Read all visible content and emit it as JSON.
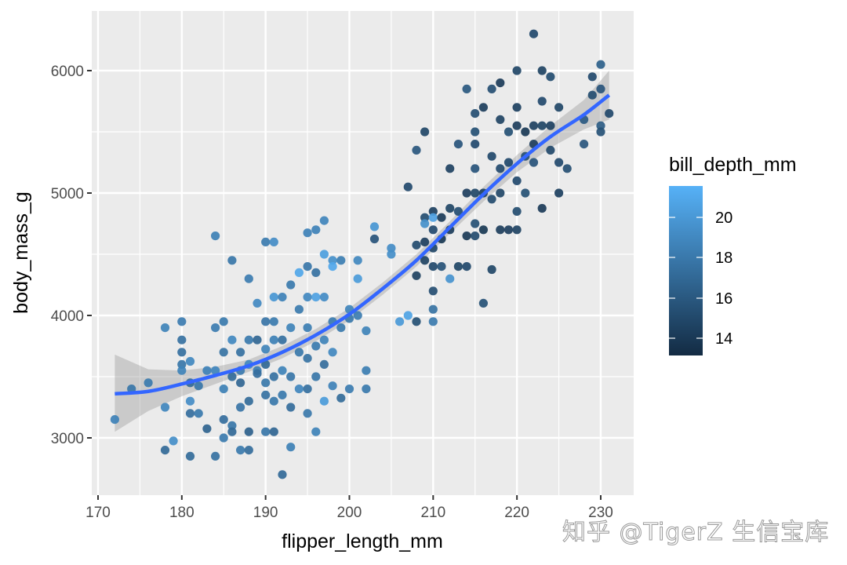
{
  "chart_data": {
    "type": "scatter",
    "title": "",
    "xlabel": "flipper_length_mm",
    "ylabel": "body_mass_g",
    "xlim": [
      170,
      232
    ],
    "ylim": [
      2550,
      6450
    ],
    "x_ticks": [
      170,
      180,
      190,
      200,
      210,
      220,
      230
    ],
    "y_ticks": [
      3000,
      4000,
      5000,
      6000
    ],
    "grid": true,
    "smooth": {
      "method": "loess",
      "color": "#3366FF",
      "curve": [
        [
          172,
          3360
        ],
        [
          176,
          3380
        ],
        [
          180,
          3440
        ],
        [
          184,
          3510
        ],
        [
          188,
          3590
        ],
        [
          192,
          3700
        ],
        [
          196,
          3840
        ],
        [
          200,
          4010
        ],
        [
          204,
          4220
        ],
        [
          208,
          4450
        ],
        [
          212,
          4720
        ],
        [
          216,
          4990
        ],
        [
          220,
          5240
        ],
        [
          224,
          5460
        ],
        [
          228,
          5640
        ],
        [
          231,
          5800
        ]
      ],
      "ci_lower": [
        [
          172,
          3050
        ],
        [
          176,
          3220
        ],
        [
          180,
          3340
        ],
        [
          184,
          3440
        ],
        [
          188,
          3540
        ],
        [
          192,
          3650
        ],
        [
          196,
          3790
        ],
        [
          200,
          3960
        ],
        [
          204,
          4170
        ],
        [
          208,
          4400
        ],
        [
          212,
          4670
        ],
        [
          216,
          4930
        ],
        [
          220,
          5170
        ],
        [
          224,
          5370
        ],
        [
          228,
          5520
        ],
        [
          231,
          5600
        ]
      ],
      "ci_upper": [
        [
          172,
          3680
        ],
        [
          176,
          3560
        ],
        [
          180,
          3550
        ],
        [
          184,
          3580
        ],
        [
          188,
          3640
        ],
        [
          192,
          3750
        ],
        [
          196,
          3890
        ],
        [
          200,
          4060
        ],
        [
          204,
          4270
        ],
        [
          208,
          4500
        ],
        [
          212,
          4770
        ],
        [
          216,
          5050
        ],
        [
          220,
          5310
        ],
        [
          224,
          5550
        ],
        [
          228,
          5760
        ],
        [
          231,
          6000
        ]
      ]
    },
    "color_scale": {
      "variable": "bill_depth_mm",
      "low_color": "#132B43",
      "high_color": "#56B1F7",
      "range": [
        13.1,
        21.5
      ],
      "ticks": [
        14,
        16,
        18,
        20
      ]
    },
    "points": [
      [
        172,
        3150,
        18.5
      ],
      [
        174,
        3400,
        17.8
      ],
      [
        176,
        3450,
        18.1
      ],
      [
        178,
        3250,
        18.8
      ],
      [
        178,
        3900,
        18.6
      ],
      [
        178,
        2900,
        17.0
      ],
      [
        179,
        2975,
        19.3
      ],
      [
        180,
        3950,
        18.2
      ],
      [
        180,
        3800,
        17.5
      ],
      [
        180,
        3700,
        17.4
      ],
      [
        180,
        3600,
        17.8
      ],
      [
        180,
        3550,
        18.6
      ],
      [
        181,
        3625,
        18.9
      ],
      [
        181,
        3300,
        19.2
      ],
      [
        181,
        3200,
        17.3
      ],
      [
        181,
        2850,
        17.1
      ],
      [
        181,
        3450,
        17.0
      ],
      [
        182,
        3425,
        17.8
      ],
      [
        182,
        3200,
        18.0
      ],
      [
        183,
        3550,
        18.5
      ],
      [
        183,
        3075,
        16.6
      ],
      [
        184,
        4650,
        18.4
      ],
      [
        184,
        3900,
        18.2
      ],
      [
        184,
        3550,
        18.8
      ],
      [
        184,
        2850,
        17.5
      ],
      [
        185,
        3950,
        18.0
      ],
      [
        185,
        3700,
        17.6
      ],
      [
        185,
        3400,
        18.4
      ],
      [
        185,
        3150,
        17.3
      ],
      [
        185,
        3000,
        18.1
      ],
      [
        186,
        4450,
        17.8
      ],
      [
        186,
        3800,
        18.9
      ],
      [
        186,
        3500,
        17.1
      ],
      [
        186,
        3100,
        17.8
      ],
      [
        186,
        3050,
        17.0
      ],
      [
        187,
        3700,
        17.5
      ],
      [
        187,
        3550,
        18.2
      ],
      [
        187,
        3450,
        16.8
      ],
      [
        187,
        3250,
        17.7
      ],
      [
        187,
        2900,
        18.0
      ],
      [
        188,
        4300,
        18.2
      ],
      [
        188,
        3800,
        18.0
      ],
      [
        188,
        3600,
        18.9
      ],
      [
        188,
        3300,
        17.1
      ],
      [
        188,
        3050,
        16.5
      ],
      [
        188,
        2900,
        17.2
      ],
      [
        189,
        4100,
        19.0
      ],
      [
        189,
        3550,
        18.3
      ],
      [
        189,
        3525,
        17.3
      ],
      [
        189,
        3800,
        16.8
      ],
      [
        190,
        4600,
        18.1
      ],
      [
        190,
        3950,
        17.7
      ],
      [
        190,
        3725,
        18.6
      ],
      [
        190,
        3450,
        17.9
      ],
      [
        190,
        3350,
        17.5
      ],
      [
        190,
        3050,
        17.8
      ],
      [
        190,
        3600,
        16.9
      ],
      [
        191,
        4600,
        19.2
      ],
      [
        191,
        4150,
        19.8
      ],
      [
        191,
        3950,
        18.1
      ],
      [
        191,
        3800,
        18.4
      ],
      [
        191,
        3500,
        17.5
      ],
      [
        191,
        3300,
        17.9
      ],
      [
        191,
        3050,
        16.8
      ],
      [
        192,
        4150,
        18.5
      ],
      [
        192,
        3800,
        17.4
      ],
      [
        192,
        3550,
        18.6
      ],
      [
        192,
        3350,
        18.0
      ],
      [
        192,
        2700,
        17.0
      ],
      [
        193,
        4250,
        18.0
      ],
      [
        193,
        3900,
        18.6
      ],
      [
        193,
        3500,
        17.8
      ],
      [
        193,
        3250,
        17.2
      ],
      [
        193,
        2925,
        18.4
      ],
      [
        194,
        4350,
        20.8
      ],
      [
        194,
        4050,
        18.1
      ],
      [
        194,
        3700,
        17.9
      ],
      [
        194,
        3400,
        18.8
      ],
      [
        195,
        4675,
        18.5
      ],
      [
        195,
        4400,
        17.8
      ],
      [
        195,
        4150,
        18.9
      ],
      [
        195,
        3900,
        18.3
      ],
      [
        195,
        3650,
        17.6
      ],
      [
        195,
        3400,
        17.4
      ],
      [
        195,
        3200,
        17.9
      ],
      [
        196,
        4700,
        18.5
      ],
      [
        196,
        4350,
        17.5
      ],
      [
        196,
        4150,
        20.5
      ],
      [
        196,
        3750,
        18.1
      ],
      [
        196,
        3500,
        17.8
      ],
      [
        196,
        3050,
        18.6
      ],
      [
        197,
        4775,
        18.7
      ],
      [
        197,
        4500,
        20.3
      ],
      [
        197,
        4150,
        19.1
      ],
      [
        197,
        3800,
        18.6
      ],
      [
        197,
        3600,
        17.2
      ],
      [
        197,
        3300,
        20.1
      ],
      [
        198,
        4450,
        19.4
      ],
      [
        198,
        4400,
        20.9
      ],
      [
        198,
        3950,
        18.2
      ],
      [
        198,
        3700,
        18.9
      ],
      [
        198,
        3425,
        18.5
      ],
      [
        199,
        4450,
        18.3
      ],
      [
        199,
        3900,
        18.0
      ],
      [
        199,
        3325,
        17.1
      ],
      [
        200,
        4050,
        18.7
      ],
      [
        200,
        3975,
        17.9
      ],
      [
        200,
        3400,
        18.2
      ],
      [
        201,
        4450,
        18.9
      ],
      [
        201,
        4300,
        20.1
      ],
      [
        201,
        4000,
        18.2
      ],
      [
        202,
        3875,
        18.6
      ],
      [
        202,
        3550,
        18.3
      ],
      [
        202,
        3400,
        18.0
      ],
      [
        203,
        4725,
        19.8
      ],
      [
        203,
        4625,
        15.6
      ],
      [
        205,
        4550,
        19.2
      ],
      [
        205,
        4500,
        19.3
      ],
      [
        206,
        3950,
        20.0
      ],
      [
        207,
        5050,
        15.0
      ],
      [
        207,
        4000,
        20.6
      ],
      [
        208,
        5350,
        15.8
      ],
      [
        208,
        4575,
        15.1
      ],
      [
        208,
        4325,
        14.5
      ],
      [
        208,
        3950,
        15.4
      ],
      [
        209,
        5500,
        14.8
      ],
      [
        209,
        4800,
        15.2
      ],
      [
        209,
        4750,
        19.4
      ],
      [
        209,
        4600,
        14.3
      ],
      [
        209,
        4450,
        14.6
      ],
      [
        210,
        4850,
        14.4
      ],
      [
        210,
        4800,
        20.5
      ],
      [
        210,
        4700,
        15.0
      ],
      [
        210,
        4550,
        14.8
      ],
      [
        210,
        4400,
        14.9
      ],
      [
        210,
        4200,
        15.3
      ],
      [
        210,
        4050,
        17.6
      ],
      [
        210,
        3950,
        18.1
      ],
      [
        211,
        4800,
        14.1
      ],
      [
        211,
        4625,
        13.9
      ],
      [
        211,
        4400,
        15.5
      ],
      [
        212,
        5200,
        14.5
      ],
      [
        212,
        4875,
        14.7
      ],
      [
        212,
        4700,
        14.2
      ],
      [
        212,
        4300,
        19.6
      ],
      [
        213,
        5400,
        15.7
      ],
      [
        213,
        4850,
        15.3
      ],
      [
        213,
        4400,
        14.7
      ],
      [
        214,
        5850,
        15.9
      ],
      [
        214,
        5000,
        14.3
      ],
      [
        214,
        4650,
        14.0
      ],
      [
        214,
        4400,
        14.9
      ],
      [
        215,
        5650,
        15.3
      ],
      [
        215,
        5500,
        15.4
      ],
      [
        215,
        5400,
        15.0
      ],
      [
        215,
        5200,
        15.6
      ],
      [
        215,
        5000,
        14.8
      ],
      [
        215,
        4750,
        15.4
      ],
      [
        215,
        4650,
        15.1
      ],
      [
        216,
        5700,
        14.2
      ],
      [
        216,
        5000,
        14.5
      ],
      [
        216,
        4700,
        13.9
      ],
      [
        216,
        4100,
        15.5
      ],
      [
        217,
        5850,
        15.3
      ],
      [
        217,
        5300,
        14.9
      ],
      [
        217,
        4950,
        15.1
      ],
      [
        217,
        4375,
        14.8
      ],
      [
        218,
        5900,
        14.1
      ],
      [
        218,
        5600,
        14.6
      ],
      [
        218,
        5200,
        15.0
      ],
      [
        218,
        5000,
        14.8
      ],
      [
        218,
        4700,
        14.2
      ],
      [
        219,
        5500,
        15.4
      ],
      [
        219,
        5250,
        14.9
      ],
      [
        219,
        4700,
        14.3
      ],
      [
        220,
        6000,
        14.8
      ],
      [
        220,
        5700,
        14.4
      ],
      [
        220,
        5550,
        14.2
      ],
      [
        220,
        5100,
        15.0
      ],
      [
        220,
        4850,
        15.2
      ],
      [
        220,
        4700,
        14.6
      ],
      [
        221,
        5500,
        14.0
      ],
      [
        221,
        5300,
        15.3
      ],
      [
        221,
        5000,
        15.4
      ],
      [
        222,
        6300,
        15.0
      ],
      [
        222,
        5550,
        14.5
      ],
      [
        222,
        5400,
        14.3
      ],
      [
        222,
        5250,
        15.6
      ],
      [
        223,
        6000,
        14.6
      ],
      [
        223,
        5750,
        15.0
      ],
      [
        223,
        5550,
        14.7
      ],
      [
        223,
        4875,
        14.1
      ],
      [
        224,
        5950,
        15.2
      ],
      [
        224,
        5550,
        14.5
      ],
      [
        224,
        5350,
        14.9
      ],
      [
        225,
        5700,
        14.8
      ],
      [
        225,
        5250,
        15.0
      ],
      [
        225,
        5000,
        14.4
      ],
      [
        226,
        5200,
        15.3
      ],
      [
        228,
        5600,
        16.0
      ],
      [
        228,
        5400,
        15.8
      ],
      [
        229,
        5950,
        15.0
      ],
      [
        229,
        5800,
        15.2
      ],
      [
        230,
        6050,
        16.4
      ],
      [
        230,
        5850,
        15.7
      ],
      [
        230,
        5550,
        16.1
      ],
      [
        230,
        5500,
        15.5
      ],
      [
        231,
        5650,
        14.9
      ]
    ]
  },
  "legend": {
    "title": "bill_depth_mm",
    "labels": [
      "20",
      "18",
      "16",
      "14"
    ]
  },
  "axes": {
    "x_title": "flipper_length_mm",
    "y_title": "body_mass_g",
    "x_tick_labels": [
      "170",
      "180",
      "190",
      "200",
      "210",
      "220",
      "230"
    ],
    "y_tick_labels": [
      "3000",
      "4000",
      "5000",
      "6000"
    ]
  },
  "watermark": "知乎 @TigerZ 生信宝库"
}
